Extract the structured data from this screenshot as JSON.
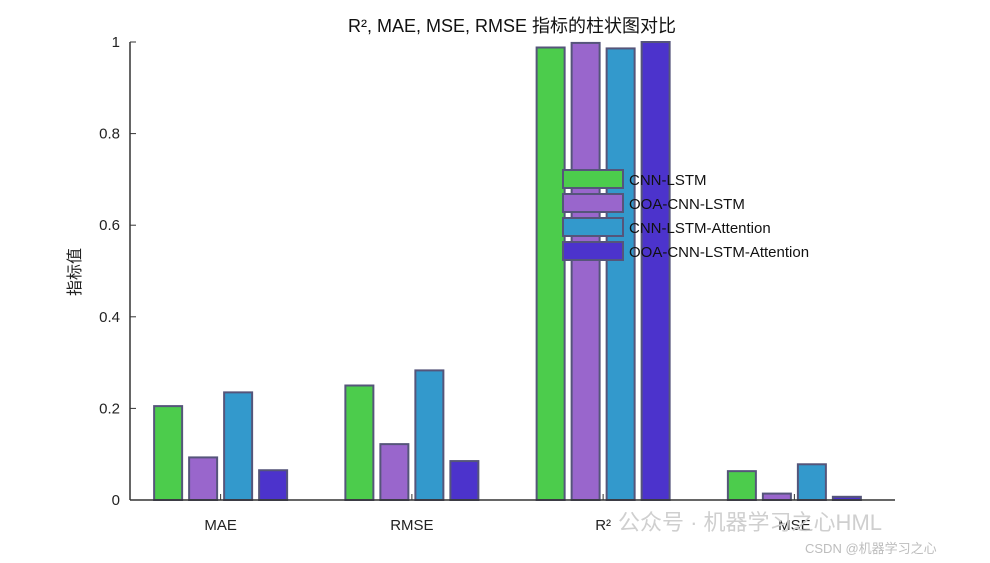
{
  "chart_data": {
    "type": "bar",
    "title": "R², MAE, MSE, RMSE 指标的柱状图对比",
    "xlabel": "",
    "ylabel": "指标值",
    "ylim": [
      0,
      1
    ],
    "yticks": [
      "0",
      "0.2",
      "0.4",
      "0.6",
      "0.8",
      "1"
    ],
    "categories": [
      "MAE",
      "RMSE",
      "R²",
      "MSE"
    ],
    "series": [
      {
        "name": "CNN-LSTM",
        "color": "#4ccc4c",
        "values": [
          0.205,
          0.25,
          0.988,
          0.063
        ]
      },
      {
        "name": "OOA-CNN-LSTM",
        "color": "#9966cc",
        "values": [
          0.093,
          0.122,
          0.998,
          0.014
        ]
      },
      {
        "name": "CNN-LSTM-Attention",
        "color": "#3399cc",
        "values": [
          0.235,
          0.283,
          0.986,
          0.078
        ]
      },
      {
        "name": "OOA-CNN-LSTM-Attention",
        "color": "#4c33cc",
        "values": [
          0.065,
          0.085,
          1.0,
          0.007
        ]
      }
    ],
    "bar_edge_color": "#55557a",
    "legend_position": "center (overlapping R² group)",
    "grid": false
  },
  "watermark": {
    "line1": "公众号 · 机器学习之心HML",
    "line2": "CSDN @机器学习之心"
  }
}
